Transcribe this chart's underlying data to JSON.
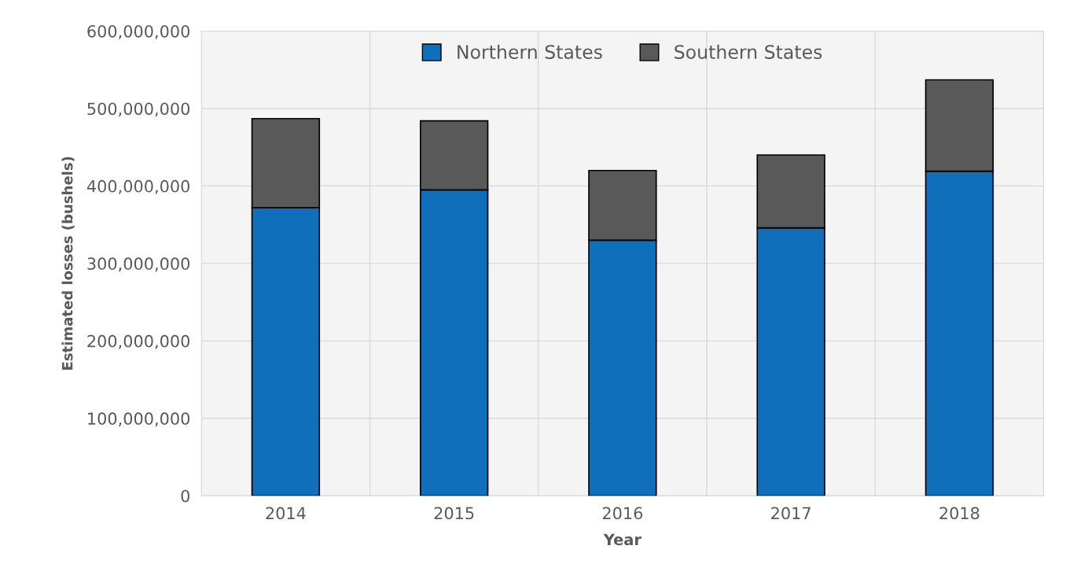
{
  "chart_data": {
    "type": "bar",
    "stacked": true,
    "xlabel": "Year",
    "ylabel": "Estimated losses (bushels)",
    "categories": [
      "2014",
      "2015",
      "2016",
      "2017",
      "2018"
    ],
    "series": [
      {
        "name": "Northern States",
        "color": "#0f6fba",
        "values": [
          372000000,
          395000000,
          330000000,
          346000000,
          419000000
        ]
      },
      {
        "name": "Southern States",
        "color": "#595959",
        "values": [
          115000000,
          89000000,
          90000000,
          94000000,
          118000000
        ]
      }
    ],
    "ylim": [
      0,
      600000000
    ],
    "yticks": [
      {
        "value": 0,
        "label": "0"
      },
      {
        "value": 100000000,
        "label": "100,000,000"
      },
      {
        "value": 200000000,
        "label": "200,000,000"
      },
      {
        "value": 300000000,
        "label": "300,000,000"
      },
      {
        "value": 400000000,
        "label": "400,000,000"
      },
      {
        "value": 500000000,
        "label": "500,000,000"
      },
      {
        "value": 600000000,
        "label": "600,000,000"
      }
    ],
    "grid": true,
    "legend": "top"
  }
}
